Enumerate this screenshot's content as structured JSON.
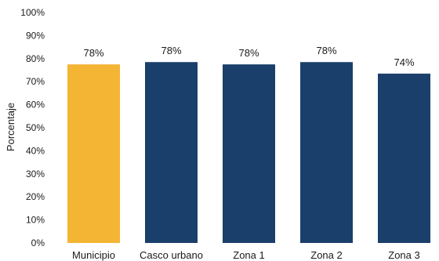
{
  "chart_data": {
    "type": "bar",
    "title": "",
    "xlabel": "",
    "ylabel": "Porcentaje",
    "categories": [
      "Municipio",
      "Casco urbano",
      "Zona 1",
      "Zona 2",
      "Zona 3"
    ],
    "values": [
      78,
      78,
      78,
      78,
      74
    ],
    "value_positions": [
      77.5,
      78.5,
      77.5,
      78.5,
      73.5
    ],
    "data_labels": [
      "78%",
      "78%",
      "78%",
      "78%",
      "74%"
    ],
    "ylim": [
      0,
      100
    ],
    "yticks": [
      "0%",
      "10%",
      "20%",
      "30%",
      "40%",
      "50%",
      "60%",
      "70%",
      "80%",
      "90%",
      "100%"
    ],
    "grid": false,
    "legend": "none",
    "colors": {
      "highlight": "#F4B434",
      "default": "#1B3F6B"
    },
    "highlight_index": 0
  }
}
